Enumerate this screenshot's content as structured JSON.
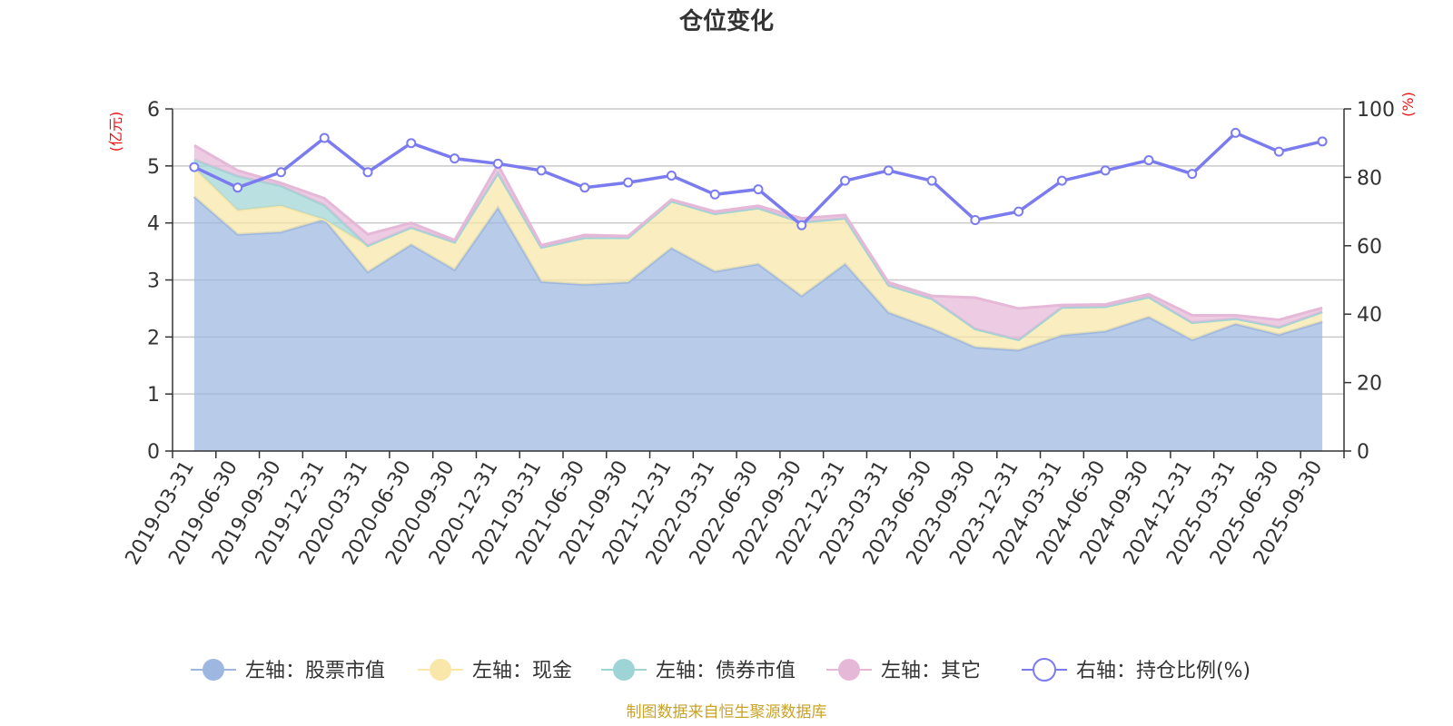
{
  "chart_data": {
    "type": "area",
    "title": "仓位变化",
    "source_note": "制图数据来自恒生聚源数据库",
    "left_axis": {
      "unit_label": "(亿元)",
      "ylim": [
        0,
        6
      ],
      "ticks": [
        "0",
        "1",
        "2",
        "3",
        "4",
        "5",
        "6"
      ]
    },
    "right_axis": {
      "unit_label": "(%)",
      "ylim": [
        0,
        100
      ],
      "ticks": [
        "0",
        "20",
        "40",
        "60",
        "80",
        "100"
      ]
    },
    "categories": [
      "2019-03-31",
      "2019-06-30",
      "2019-09-30",
      "2019-12-31",
      "2020-03-31",
      "2020-06-30",
      "2020-09-30",
      "2020-12-31",
      "2021-03-31",
      "2021-06-30",
      "2021-09-30",
      "2021-12-31",
      "2022-03-31",
      "2022-06-30",
      "2022-09-30",
      "2022-12-31",
      "2023-03-31",
      "2023-06-30",
      "2023-09-30",
      "2023-12-31",
      "2024-03-31",
      "2024-06-30",
      "2024-09-30",
      "2024-12-31",
      "2025-03-31",
      "2025-06-30",
      "2025-09-30"
    ],
    "series": [
      {
        "name": "左轴：股票市值",
        "axis": "left",
        "kind": "stacked-area",
        "color": "#9db7e0",
        "values": [
          4.46,
          3.8,
          3.84,
          4.06,
          3.14,
          3.62,
          3.18,
          4.27,
          2.97,
          2.92,
          2.96,
          3.56,
          3.15,
          3.28,
          2.72,
          3.28,
          2.43,
          2.15,
          1.82,
          1.77,
          2.03,
          2.1,
          2.35,
          1.95,
          2.23,
          2.04,
          2.27
        ]
      },
      {
        "name": "左轴：现金",
        "axis": "left",
        "kind": "stacked-area",
        "color": "#f8e7a8",
        "values": [
          0.5,
          0.42,
          0.46,
          0.0,
          0.46,
          0.3,
          0.48,
          0.6,
          0.6,
          0.82,
          0.78,
          0.82,
          1.01,
          0.98,
          1.29,
          0.8,
          0.48,
          0.52,
          0.32,
          0.18,
          0.49,
          0.43,
          0.35,
          0.3,
          0.09,
          0.13,
          0.17
        ]
      },
      {
        "name": "左轴：债券市值",
        "axis": "left",
        "kind": "stacked-area",
        "color": "#9fd4d6",
        "values": [
          0.15,
          0.6,
          0.35,
          0.25,
          0.0,
          0.0,
          0.0,
          0.0,
          0.0,
          0.0,
          0.0,
          0.0,
          0.0,
          0.0,
          0.0,
          0.0,
          0.0,
          0.0,
          0.0,
          0.0,
          0.0,
          0.0,
          0.0,
          0.0,
          0.0,
          0.0,
          0.0
        ]
      },
      {
        "name": "左轴：其它",
        "axis": "left",
        "kind": "stacked-area",
        "color": "#e6b8d8",
        "values": [
          0.25,
          0.1,
          0.05,
          0.12,
          0.2,
          0.08,
          0.04,
          0.15,
          0.04,
          0.05,
          0.03,
          0.03,
          0.04,
          0.04,
          0.07,
          0.06,
          0.05,
          0.05,
          0.55,
          0.55,
          0.04,
          0.04,
          0.05,
          0.13,
          0.06,
          0.13,
          0.07
        ]
      },
      {
        "name": "右轴：持仓比例(%)",
        "axis": "right",
        "kind": "line",
        "color": "#7b7bf0",
        "values": [
          83,
          77,
          81.5,
          91.5,
          81.5,
          90,
          85.5,
          84,
          82,
          77,
          78.5,
          80.5,
          75,
          76.5,
          66,
          79,
          82,
          79,
          67.5,
          70,
          79,
          82,
          85,
          81,
          93,
          87.5,
          90.5
        ]
      }
    ]
  }
}
